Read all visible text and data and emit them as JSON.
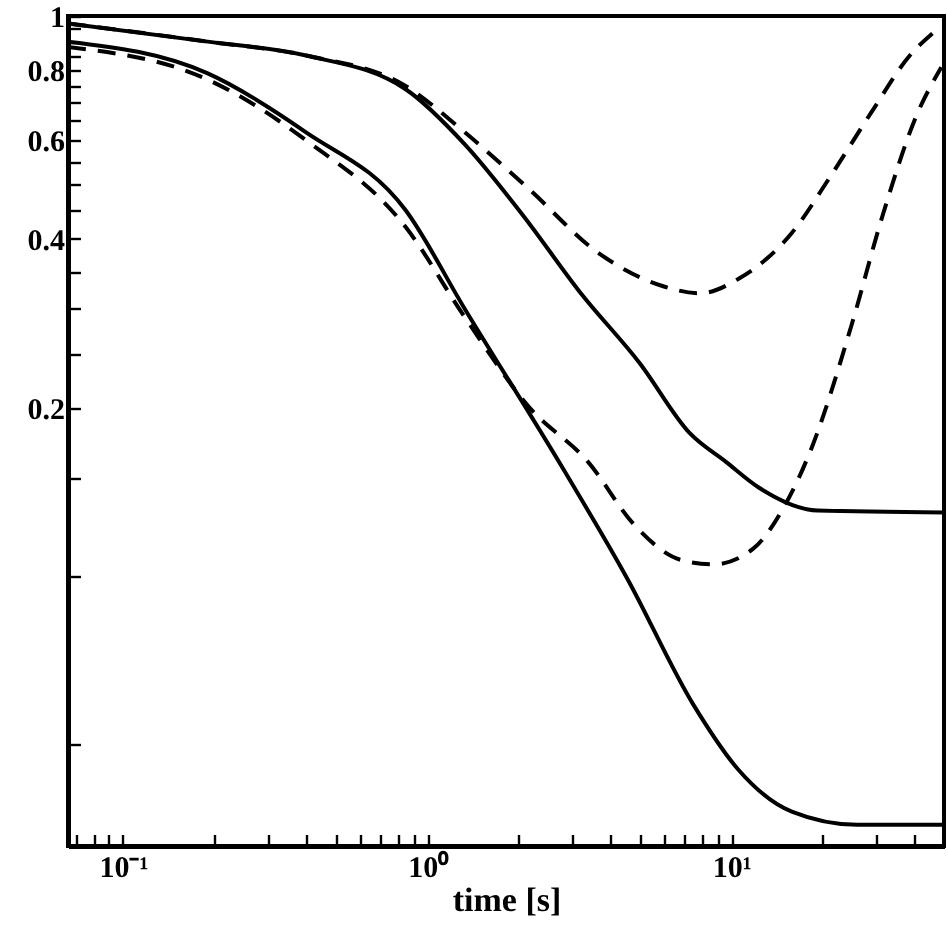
{
  "chart_data": {
    "type": "line",
    "xlabel": "time [s]",
    "log": "xy",
    "xlim": [
      0.066,
      50
    ],
    "ylim": [
      0.033,
      1
    ],
    "xticks": [
      {
        "value": 0.07,
        "label": null
      },
      {
        "value": 0.08,
        "label": null
      },
      {
        "value": 0.09,
        "label": null
      },
      {
        "value": 0.1,
        "label": "10⁻¹"
      },
      {
        "value": 0.2,
        "label": null
      },
      {
        "value": 0.3,
        "label": null
      },
      {
        "value": 0.4,
        "label": null
      },
      {
        "value": 0.5,
        "label": null
      },
      {
        "value": 0.6,
        "label": null
      },
      {
        "value": 0.7,
        "label": null
      },
      {
        "value": 0.8,
        "label": null
      },
      {
        "value": 0.9,
        "label": null
      },
      {
        "value": 1,
        "label": "10⁰"
      },
      {
        "value": 2,
        "label": null
      },
      {
        "value": 3,
        "label": null
      },
      {
        "value": 4,
        "label": null
      },
      {
        "value": 5,
        "label": null
      },
      {
        "value": 6,
        "label": null
      },
      {
        "value": 7,
        "label": null
      },
      {
        "value": 8,
        "label": null
      },
      {
        "value": 9,
        "label": null
      },
      {
        "value": 10,
        "label": "10¹"
      },
      {
        "value": 20,
        "label": null
      },
      {
        "value": 30,
        "label": null
      },
      {
        "value": 40,
        "label": null
      }
    ],
    "yticks": [
      {
        "value": 0.05,
        "label": null
      },
      {
        "value": 0.1,
        "label": null
      },
      {
        "value": 0.15,
        "label": null
      },
      0.2,
      {
        "value": 0.25,
        "label": null
      },
      {
        "value": 0.3,
        "label": null
      },
      {
        "value": 0.35,
        "label": null
      },
      0.4,
      {
        "value": 0.45,
        "label": null
      },
      {
        "value": 0.5,
        "label": null
      },
      {
        "value": 0.55,
        "label": null
      },
      0.6,
      {
        "value": 0.65,
        "label": null
      },
      {
        "value": 0.7,
        "label": null
      },
      {
        "value": 0.75,
        "label": null
      },
      0.8,
      {
        "value": 0.85,
        "label": null
      },
      {
        "value": 0.9,
        "label": null
      },
      {
        "value": 0.95,
        "label": null
      },
      1
    ],
    "grid": false,
    "series": [
      {
        "color": "#000000",
        "line_style": "solid",
        "x": [
          0.066,
          0.19,
          0.4,
          0.85,
          1.33,
          2.07,
          3.2,
          5.0,
          7.3,
          9.6,
          12.3,
          19.2,
          50
        ],
        "values": [
          0.97,
          0.9,
          0.85,
          0.74,
          0.59,
          0.44,
          0.32,
          0.24,
          0.18,
          0.16,
          0.144,
          0.131,
          0.13
        ]
      },
      {
        "color": "#000000",
        "line_style": "dashed",
        "x": [
          0.066,
          0.19,
          0.4,
          0.85,
          1.33,
          2.17,
          3.6,
          5.9,
          7.9,
          10.6,
          15.8,
          21.3,
          28.7,
          38.6,
          46.8
        ],
        "values": [
          0.97,
          0.9,
          0.85,
          0.75,
          0.62,
          0.49,
          0.38,
          0.33,
          0.32,
          0.34,
          0.41,
          0.52,
          0.67,
          0.85,
          0.94
        ]
      },
      {
        "color": "#000000",
        "line_style": "solid",
        "x": [
          0.066,
          0.19,
          0.4,
          0.85,
          1.33,
          2.79,
          4.55,
          7.5,
          10.6,
          15.8,
          25.9,
          50
        ],
        "values": [
          0.9,
          0.79,
          0.62,
          0.45,
          0.3,
          0.156,
          0.099,
          0.059,
          0.045,
          0.038,
          0.036,
          0.036
        ]
      },
      {
        "color": "#000000",
        "line_style": "dashed",
        "x": [
          0.066,
          0.19,
          0.4,
          0.85,
          1.33,
          2.17,
          3.38,
          4.83,
          6.8,
          8.75,
          11.8,
          14.9,
          18.4,
          24.8,
          31.4,
          40.4,
          49
        ],
        "values": [
          0.88,
          0.77,
          0.6,
          0.42,
          0.29,
          0.2,
          0.16,
          0.123,
          0.107,
          0.105,
          0.112,
          0.133,
          0.17,
          0.28,
          0.44,
          0.66,
          0.81
        ]
      }
    ]
  }
}
